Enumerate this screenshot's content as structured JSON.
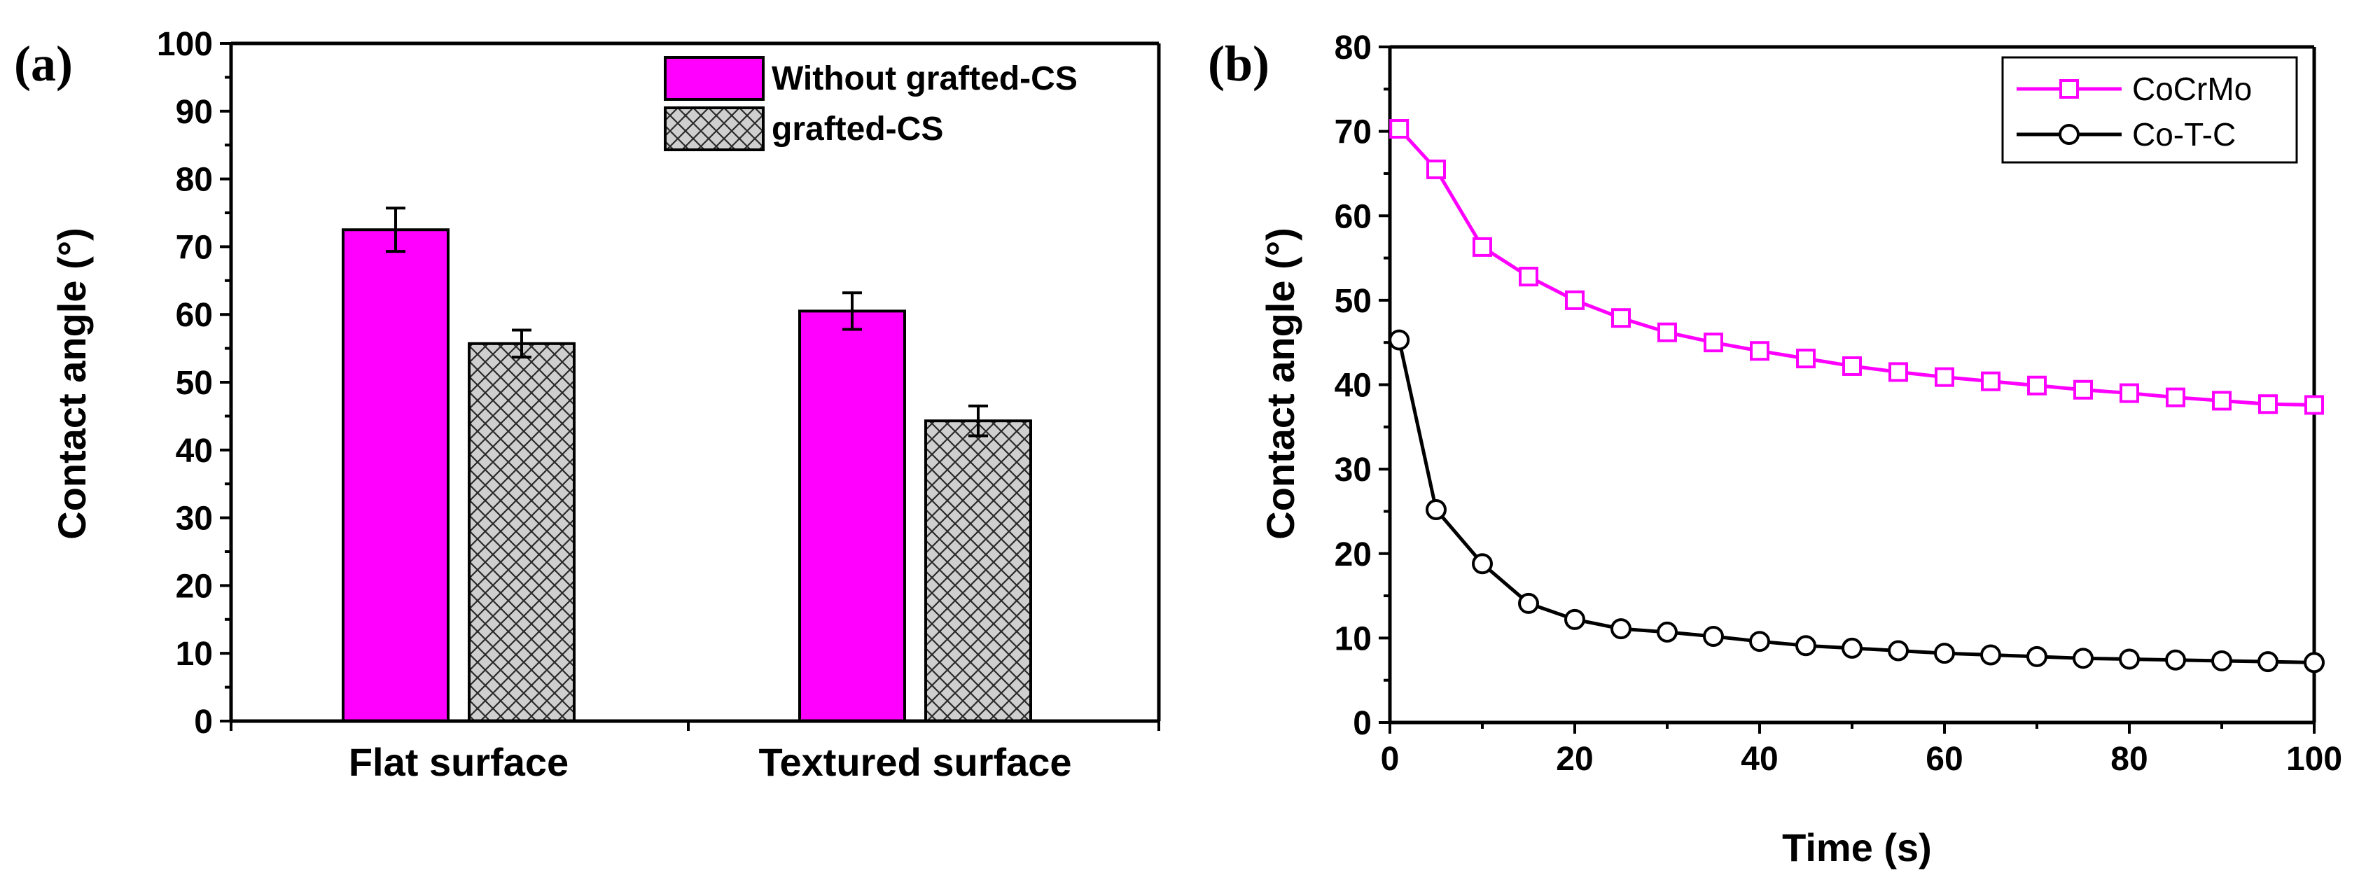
{
  "colors": {
    "magenta": "#ff00ff",
    "hatch_bg": "#cfcfcf",
    "black": "#000000"
  },
  "chart_data": [
    {
      "panel_label": "(a)",
      "type": "bar",
      "title": "",
      "xlabel": "",
      "ylabel": "Contact angle (°)",
      "ylim": [
        0,
        100
      ],
      "yticks": [
        "0",
        "10",
        "20",
        "30",
        "40",
        "50",
        "60",
        "70",
        "80",
        "90",
        "100"
      ],
      "categories": [
        "Flat surface",
        "Textured surface"
      ],
      "series": [
        {
          "name": "Without grafted-CS",
          "values": [
            72.5,
            60.5
          ],
          "errors": [
            3.2,
            2.7
          ],
          "style": "solid-magenta"
        },
        {
          "name": "grafted-CS",
          "values": [
            55.7,
            44.3
          ],
          "errors": [
            2.0,
            2.2
          ],
          "style": "crosshatch-gray"
        }
      ],
      "legend_position": "top-right"
    },
    {
      "panel_label": "(b)",
      "type": "line",
      "title": "",
      "xlabel": "Time (s)",
      "ylabel": "Contact angle (°)",
      "xlim": [
        0,
        100
      ],
      "ylim": [
        0,
        80
      ],
      "xticks": [
        "0",
        "20",
        "40",
        "60",
        "80",
        "100"
      ],
      "yticks": [
        "0",
        "10",
        "20",
        "30",
        "40",
        "50",
        "60",
        "70",
        "80"
      ],
      "x": [
        1,
        5,
        10,
        15,
        20,
        25,
        30,
        35,
        40,
        45,
        50,
        55,
        60,
        65,
        70,
        75,
        80,
        85,
        90,
        95,
        100
      ],
      "series": [
        {
          "name": "CoCrMo",
          "marker": "square",
          "values": [
            70.3,
            65.5,
            56.3,
            52.8,
            50.0,
            47.9,
            46.2,
            45.0,
            44.0,
            43.1,
            42.2,
            41.5,
            40.9,
            40.4,
            39.9,
            39.4,
            39.0,
            38.5,
            38.1,
            37.7,
            37.6
          ]
        },
        {
          "name": "Co-T-C",
          "marker": "circle",
          "values": [
            45.3,
            25.2,
            18.8,
            14.1,
            12.2,
            11.1,
            10.7,
            10.2,
            9.6,
            9.1,
            8.8,
            8.5,
            8.2,
            8.0,
            7.8,
            7.6,
            7.5,
            7.4,
            7.3,
            7.2,
            7.1
          ]
        }
      ],
      "legend_position": "top-right"
    }
  ]
}
